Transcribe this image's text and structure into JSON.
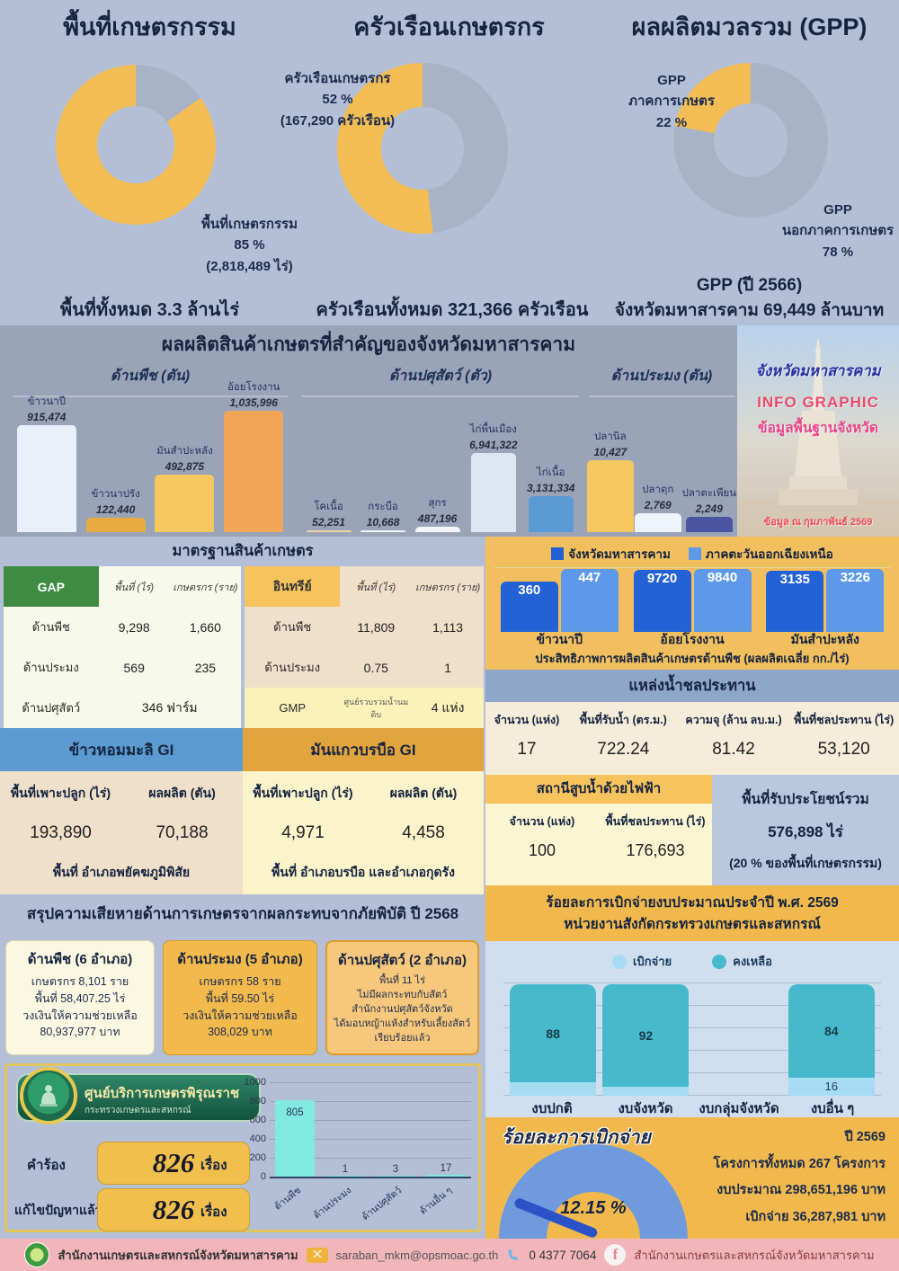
{
  "colors": {
    "page_bg": "#b3bfd6",
    "band_bg": "#9aa4b9",
    "accent_yellow": "#f2bd55",
    "donut_gray": "#a9b3c7",
    "navy": "#15233f"
  },
  "chart_data": [
    {
      "type": "pie",
      "title": "พื้นที่เกษตรกรรม",
      "slices": [
        {
          "label": "พื้นที่เกษตรกรรม",
          "pct": 85,
          "color": "#f2bd55"
        },
        {
          "label": "",
          "pct": 15,
          "color": "#a9b3c7"
        }
      ],
      "pct_label": "85 %",
      "detail": "(2,818,489 ไร่)",
      "footer": "พื้นที่ทั้งหมด 3.3 ล้านไร่"
    },
    {
      "type": "pie",
      "title": "ครัวเรือนเกษตรกร",
      "slices": [
        {
          "label": "ครัวเรือนเกษตรกร",
          "pct": 52,
          "color": "#f2bd55"
        },
        {
          "label": "",
          "pct": 48,
          "color": "#a9b3c7"
        }
      ],
      "pct_label": "52 %",
      "detail": "(167,290 ครัวเรือน)",
      "footer": "ครัวเรือนทั้งหมด 321,366 ครัวเรือน"
    },
    {
      "type": "pie",
      "title": "ผลผลิตมวลรวม (GPP)",
      "slices": [
        {
          "label_l1": "GPP",
          "label_l2": "ภาคการเกษตร",
          "pct_label": "22 %",
          "pct": 22,
          "color": "#f2bd55"
        },
        {
          "label_l1": "GPP",
          "label_l2": "นอกภาคการเกษตร",
          "pct_label": "78 %",
          "pct": 78,
          "color": "#a9b3c7"
        }
      ],
      "footer1": "GPP (ปี 2566)",
      "footer2": "จังหวัดมหาสารคาม 69,449 ล้านบาท"
    },
    {
      "type": "bar",
      "title": "ด้านพืช (ตัน)",
      "categories": [
        "ข้าวนาปี",
        "ข้าวนาปรัง",
        "มันสำปะหลัง",
        "อ้อยโรงงาน"
      ],
      "values": [
        915474,
        122440,
        492875,
        1035996
      ],
      "labels": [
        "915,474",
        "122,440",
        "492,875",
        "1,035,996"
      ],
      "colors": [
        "#e9f0fa",
        "#e9ab40",
        "#f6c75f",
        "#f2a556"
      ]
    },
    {
      "type": "bar",
      "title": "ด้านปศุสัตว์ (ตัว)",
      "categories": [
        "โคเนื้อ",
        "กระบือ",
        "สุกร",
        "ไก่พื้นเมือง",
        "ไก่เนื้อ"
      ],
      "values": [
        52251,
        10668,
        487196,
        6941322,
        3131334
      ],
      "labels": [
        "52,251",
        "10,668",
        "487,196",
        "6,941,322",
        "3,131,334"
      ],
      "colors": [
        "#e6d6a0",
        "#edf2f8",
        "#f2f6fb",
        "#dde6f2",
        "#5b9bd5"
      ]
    },
    {
      "type": "bar",
      "title": "ด้านประมง (ตัน)",
      "categories": [
        "ปลานิล",
        "ปลาดุก",
        "ปลาตะเพียน"
      ],
      "values": [
        10427,
        2769,
        2249
      ],
      "labels": [
        "10,427",
        "2,769",
        "2,249"
      ],
      "colors": [
        "#f6c75f",
        "#eef4fb",
        "#4a55a2"
      ]
    },
    {
      "type": "bar",
      "title": "ประสิทธิภาพการผลิตสินค้าเกษตรด้านพืช (ผลผลิตเฉลี่ย กก./ไร่)",
      "categories": [
        "ข้าวนาปี",
        "อ้อยโรงงาน",
        "มันสำปะหลัง"
      ],
      "series": [
        {
          "name": "จังหวัดมหาสารคาม",
          "color": "#2261d6",
          "values": [
            360,
            9720,
            3135
          ]
        },
        {
          "name": "ภาคตะวันออกเฉียงเหนือ",
          "color": "#5d99e8",
          "values": [
            447,
            9840,
            3226
          ]
        }
      ]
    },
    {
      "type": "bar",
      "categories": [
        "ด้านพืช",
        "ด้านประมง",
        "ด้านปศุสัตว์",
        "ด้านอื่น ๆ"
      ],
      "values": [
        805,
        1,
        3,
        17
      ],
      "labels": [
        "805",
        "1",
        "3",
        "17"
      ],
      "yticks": [
        "1000",
        "800",
        "600",
        "400",
        "200",
        "0"
      ],
      "ylim": [
        0,
        1000
      ],
      "bar_color": "#7fe9e2"
    },
    {
      "type": "bar",
      "stacked": true,
      "categories": [
        "งบปกติ",
        "งบจังหวัด",
        "งบกลุ่มจังหวัด",
        "งบอื่น ๆ"
      ],
      "series": [
        {
          "name": "เบิกจ่าย",
          "color": "#a6dcf2",
          "values": [
            12,
            8,
            null,
            16
          ],
          "labels": [
            "",
            "",
            "",
            "16"
          ]
        },
        {
          "name": "คงเหลือ",
          "color": "#46b9cc",
          "values": [
            88,
            92,
            null,
            84
          ],
          "labels": [
            "88",
            "92",
            "",
            "84"
          ]
        }
      ]
    },
    {
      "type": "gauge",
      "title": "ร้อยละการเบิกจ่าย",
      "value": 12.15,
      "value_label": "12.15 %",
      "info": [
        "ปี 2569",
        "โครงการทั้งหมด 267 โครงการ",
        "งบประมาณ 298,651,196 บาท",
        "เบิกจ่าย 36,287,981 บาท"
      ]
    }
  ],
  "products_title": "ผลผลิตสินค้าเกษตรที่สำคัญของจังหวัดมหาสารคาม",
  "info_panel": {
    "line1": "จังหวัดมหาสารคาม",
    "line2": "INFO GRAPHIC",
    "line3": "ข้อมูลพื้นฐานจังหวัด",
    "line4": "ข้อมูล ณ กุมภาพันธ์ 2569"
  },
  "standards": {
    "title": "มาตรฐานสินค้าเกษตร",
    "gap": {
      "name": "GAP",
      "col1": "พื้นที่ (ไร่)",
      "col2": "เกษตรกร (ราย)",
      "rows": [
        {
          "name": "ด้านพืช",
          "v1": "9,298",
          "v2": "1,660"
        },
        {
          "name": "ด้านประมง",
          "v1": "569",
          "v2": "235"
        }
      ],
      "last": {
        "name": "ด้านปศุสัตว์",
        "value": "346 ฟาร์ม"
      }
    },
    "organic": {
      "name": "อินทรีย์",
      "col1": "พื้นที่ (ไร่)",
      "col2": "เกษตรกร (ราย)",
      "rows": [
        {
          "name": "ด้านพืช",
          "v1": "11,809",
          "v2": "1,113"
        },
        {
          "name": "ด้านประมง",
          "v1": "0.75",
          "v2": "1"
        }
      ],
      "gmp": {
        "name": "GMP",
        "desc": "ศูนย์รวบรวมน้ำนมดิบ",
        "value": "4 แห่ง"
      }
    }
  },
  "irrigation": {
    "title": "แหล่งน้ำชลประทาน",
    "cols": [
      {
        "h": "จำนวน (แห่ง)",
        "v": "17"
      },
      {
        "h": "พื้นที่รับน้ำ (ตร.ม.)",
        "v": "722.24"
      },
      {
        "h": "ความจุ (ล้าน ลบ.ม.)",
        "v": "81.42"
      },
      {
        "h": "พื้นที่ชลประทาน (ไร่)",
        "v": "53,120"
      }
    ]
  },
  "gi_rice": {
    "title": "ข้าวหอมมะลิ GI",
    "col1": "พื้นที่เพาะปลูก (ไร่)",
    "col2": "ผลผลิต (ตัน)",
    "v1": "193,890",
    "v2": "70,188",
    "footer": "พื้นที่ อำเภอพยัคฆภูมิพิสัย"
  },
  "gi_yam": {
    "title": "มันแกวบรบือ GI",
    "col1": "พื้นที่เพาะปลูก (ไร่)",
    "col2": "ผลผลิต (ตัน)",
    "v1": "4,971",
    "v2": "4,458",
    "footer": "พื้นที่ อำเภอบรบือ และอำเภอกุดรัง"
  },
  "pump": {
    "title": "สถานีสูบน้ำด้วยไฟฟ้า",
    "col1": "จำนวน (แห่ง)",
    "col2": "พื้นที่ชลประทาน (ไร่)",
    "v1": "100",
    "v2": "176,693"
  },
  "benefit": {
    "l1": "พื้นที่รับประโยชน์รวม",
    "l2": "576,898 ไร่",
    "l3": "(20 % ของพื้นที่เกษตรกรรม)"
  },
  "disaster": {
    "title": "สรุปความเสียหายด้านการเกษตรจากผลกระทบจากภัยพิบัติ ปี 2568",
    "cards": [
      {
        "title": "ด้านพืช (6 อำเภอ)",
        "lines": [
          "เกษตรกร 8,101 ราย",
          "พื้นที่ 58,407.25 ไร่",
          "วงเงินให้ความช่วยเหลือ",
          "80,937,977 บาท"
        ]
      },
      {
        "title": "ด้านประมง (5 อำเภอ)",
        "lines": [
          "เกษตรกร 58 ราย",
          "พื้นที่ 59.50 ไร่",
          "วงเงินให้ความช่วยเหลือ",
          "308,029 บาท"
        ]
      },
      {
        "title": "ด้านปศุสัตว์ (2 อำเภอ)",
        "lines": [
          "พื้นที่ 11 ไร่",
          "ไม่มีผลกระทบกับสัตว์",
          "สำนักงานปศุสัตว์จังหวัด",
          "ได้มอบหญ้าแห้งสำหรับเลี้ยงสัตว์",
          "เรียบร้อยแล้ว"
        ]
      }
    ]
  },
  "service": {
    "title": "ศูนย์บริการเกษตรพิรุณราช",
    "subtitle": "กระทรวงเกษตรและสหกรณ์",
    "row1_label": "คำร้อง",
    "row1_value": "826",
    "row1_unit": "เรื่อง",
    "row2_label": "แก้ไขปัญหาแล้ว",
    "row2_value": "826",
    "row2_unit": "เรื่อง"
  },
  "budget_header": {
    "line1": "ร้อยละการเบิกจ่ายงบประมาณประจำปี พ.ศ. 2569",
    "line2": "หน่วยงานสังกัดกระทรวงเกษตรและสหกรณ์"
  },
  "footer": {
    "office": "สำนักงานเกษตรและสหกรณ์จังหวัดมหาสารคาม",
    "email": "saraban_mkm@opsmoac.go.th",
    "phone": "0 4377 7064",
    "facebook": "สำนักงานเกษตรและสหกรณ์จังหวัดมหาสารคาม",
    "fb_letter": "f"
  }
}
